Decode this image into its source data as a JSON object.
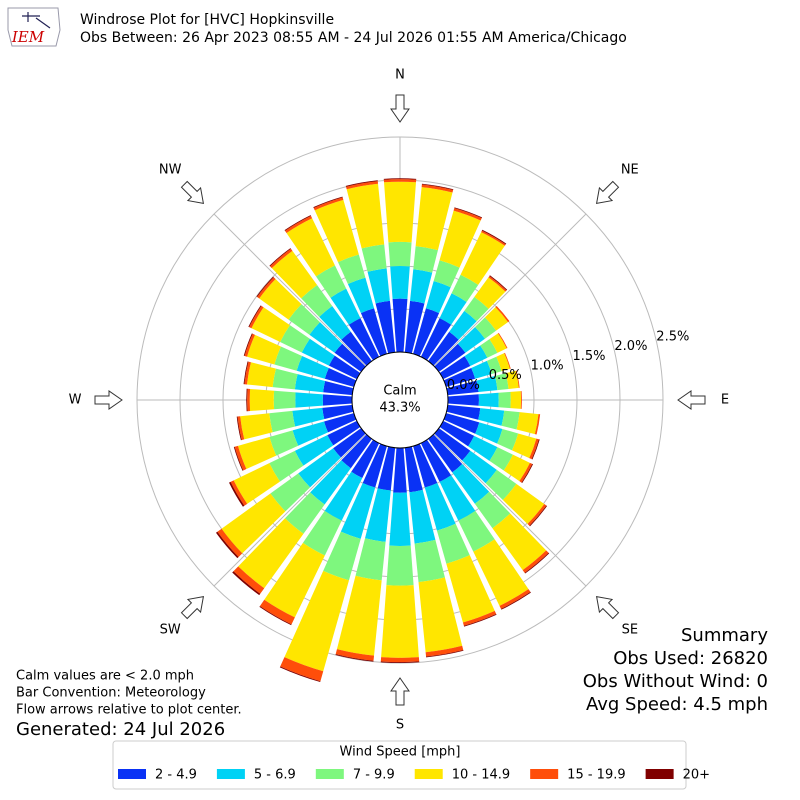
{
  "chart_data": {
    "type": "windrose",
    "title": "Windrose Plot for [HVC] Hopkinsville",
    "subtitle": "Obs Between: 26 Apr 2023 08:55 AM - 24 Jul 2026 01:55 AM America/Chicago",
    "logo_text": "IEM",
    "x": [
      0,
      10,
      20,
      30,
      40,
      50,
      60,
      70,
      80,
      90,
      100,
      110,
      120,
      130,
      140,
      150,
      160,
      170,
      180,
      190,
      200,
      210,
      220,
      230,
      240,
      250,
      260,
      270,
      280,
      290,
      300,
      310,
      320,
      330,
      340,
      350
    ],
    "xticks": [
      {
        "value": 0,
        "label": "N"
      },
      {
        "value": 45,
        "label": "NE"
      },
      {
        "value": 90,
        "label": "E"
      },
      {
        "value": 135,
        "label": "SE"
      },
      {
        "value": 180,
        "label": "S"
      },
      {
        "value": 225,
        "label": "SW"
      },
      {
        "value": 270,
        "label": "W"
      },
      {
        "value": 315,
        "label": "NW"
      }
    ],
    "ylim": [
      0,
      2.5
    ],
    "yticks": [
      {
        "value": 0,
        "label": "0.0%"
      },
      {
        "value": 0.5,
        "label": "0.5%"
      },
      {
        "value": 1,
        "label": "1.0%"
      },
      {
        "value": 1.5,
        "label": "1.5%"
      },
      {
        "value": 2,
        "label": "2.0%"
      },
      {
        "value": 2.5,
        "label": "2.5%"
      }
    ],
    "grid": true,
    "calm": {
      "label": "Calm",
      "value": 43.3,
      "value_label": "43.3%"
    },
    "legend_title": "Wind Speed [mph]",
    "series": [
      {
        "name": "2 - 4.9",
        "color": "#0a32f5",
        "values": [
          0.62,
          0.6,
          0.55,
          0.5,
          0.42,
          0.38,
          0.35,
          0.35,
          0.36,
          0.36,
          0.38,
          0.4,
          0.4,
          0.45,
          0.48,
          0.5,
          0.5,
          0.52,
          0.52,
          0.5,
          0.5,
          0.45,
          0.42,
          0.4,
          0.38,
          0.36,
          0.35,
          0.34,
          0.34,
          0.35,
          0.36,
          0.38,
          0.42,
          0.5,
          0.55,
          0.6
        ]
      },
      {
        "name": "5 - 6.9",
        "color": "#00d2f5",
        "values": [
          0.38,
          0.37,
          0.33,
          0.32,
          0.3,
          0.28,
          0.22,
          0.2,
          0.22,
          0.23,
          0.28,
          0.28,
          0.3,
          0.38,
          0.45,
          0.5,
          0.52,
          0.6,
          0.62,
          0.6,
          0.62,
          0.55,
          0.52,
          0.5,
          0.42,
          0.38,
          0.35,
          0.32,
          0.33,
          0.34,
          0.35,
          0.36,
          0.37,
          0.38,
          0.37,
          0.38
        ]
      },
      {
        "name": "7 - 9.9",
        "color": "#7ef77e",
        "values": [
          0.28,
          0.27,
          0.25,
          0.24,
          0.2,
          0.16,
          0.13,
          0.12,
          0.13,
          0.14,
          0.18,
          0.19,
          0.2,
          0.28,
          0.35,
          0.4,
          0.4,
          0.45,
          0.46,
          0.45,
          0.5,
          0.45,
          0.42,
          0.4,
          0.33,
          0.28,
          0.27,
          0.25,
          0.26,
          0.27,
          0.28,
          0.3,
          0.3,
          0.3,
          0.28,
          0.28
        ]
      },
      {
        "name": "10 - 14.9",
        "color": "#ffe600",
        "values": [
          0.7,
          0.69,
          0.6,
          0.55,
          0.28,
          0.17,
          0.12,
          0.1,
          0.12,
          0.12,
          0.22,
          0.22,
          0.22,
          0.4,
          0.6,
          0.7,
          0.71,
          0.82,
          0.84,
          0.88,
          1.1,
          0.8,
          0.78,
          0.7,
          0.46,
          0.38,
          0.34,
          0.28,
          0.3,
          0.33,
          0.37,
          0.42,
          0.49,
          0.61,
          0.66,
          0.71
        ]
      },
      {
        "name": "15 - 19.9",
        "color": "#ff4e0a",
        "values": [
          0.03,
          0.03,
          0.03,
          0.02,
          0.02,
          0.02,
          0.01,
          0.01,
          0.01,
          0.01,
          0.02,
          0.03,
          0.03,
          0.03,
          0.04,
          0.04,
          0.04,
          0.05,
          0.05,
          0.06,
          0.12,
          0.09,
          0.08,
          0.06,
          0.04,
          0.04,
          0.03,
          0.03,
          0.03,
          0.03,
          0.03,
          0.03,
          0.03,
          0.03,
          0.03,
          0.03
        ]
      },
      {
        "name": "20+",
        "color": "#800000",
        "values": [
          0.01,
          0.01,
          0.01,
          0.01,
          0.01,
          0,
          0,
          0,
          0,
          0,
          0,
          0.01,
          0.01,
          0.01,
          0.01,
          0.01,
          0.01,
          0.01,
          0.01,
          0.01,
          0.01,
          0.01,
          0.02,
          0.02,
          0.02,
          0.01,
          0.01,
          0.01,
          0.01,
          0.01,
          0.01,
          0.01,
          0.01,
          0.01,
          0.01,
          0.01
        ]
      }
    ],
    "notes": [
      "Calm values are < 2.0 mph",
      "Bar Convention: Meteorology",
      "Flow arrows relative to plot center."
    ],
    "generated": "Generated: 24 Jul 2026",
    "summary": [
      "Summary",
      "Obs Used: 26820",
      "Obs Without Wind: 0",
      "Avg Speed: 4.5 mph"
    ]
  }
}
